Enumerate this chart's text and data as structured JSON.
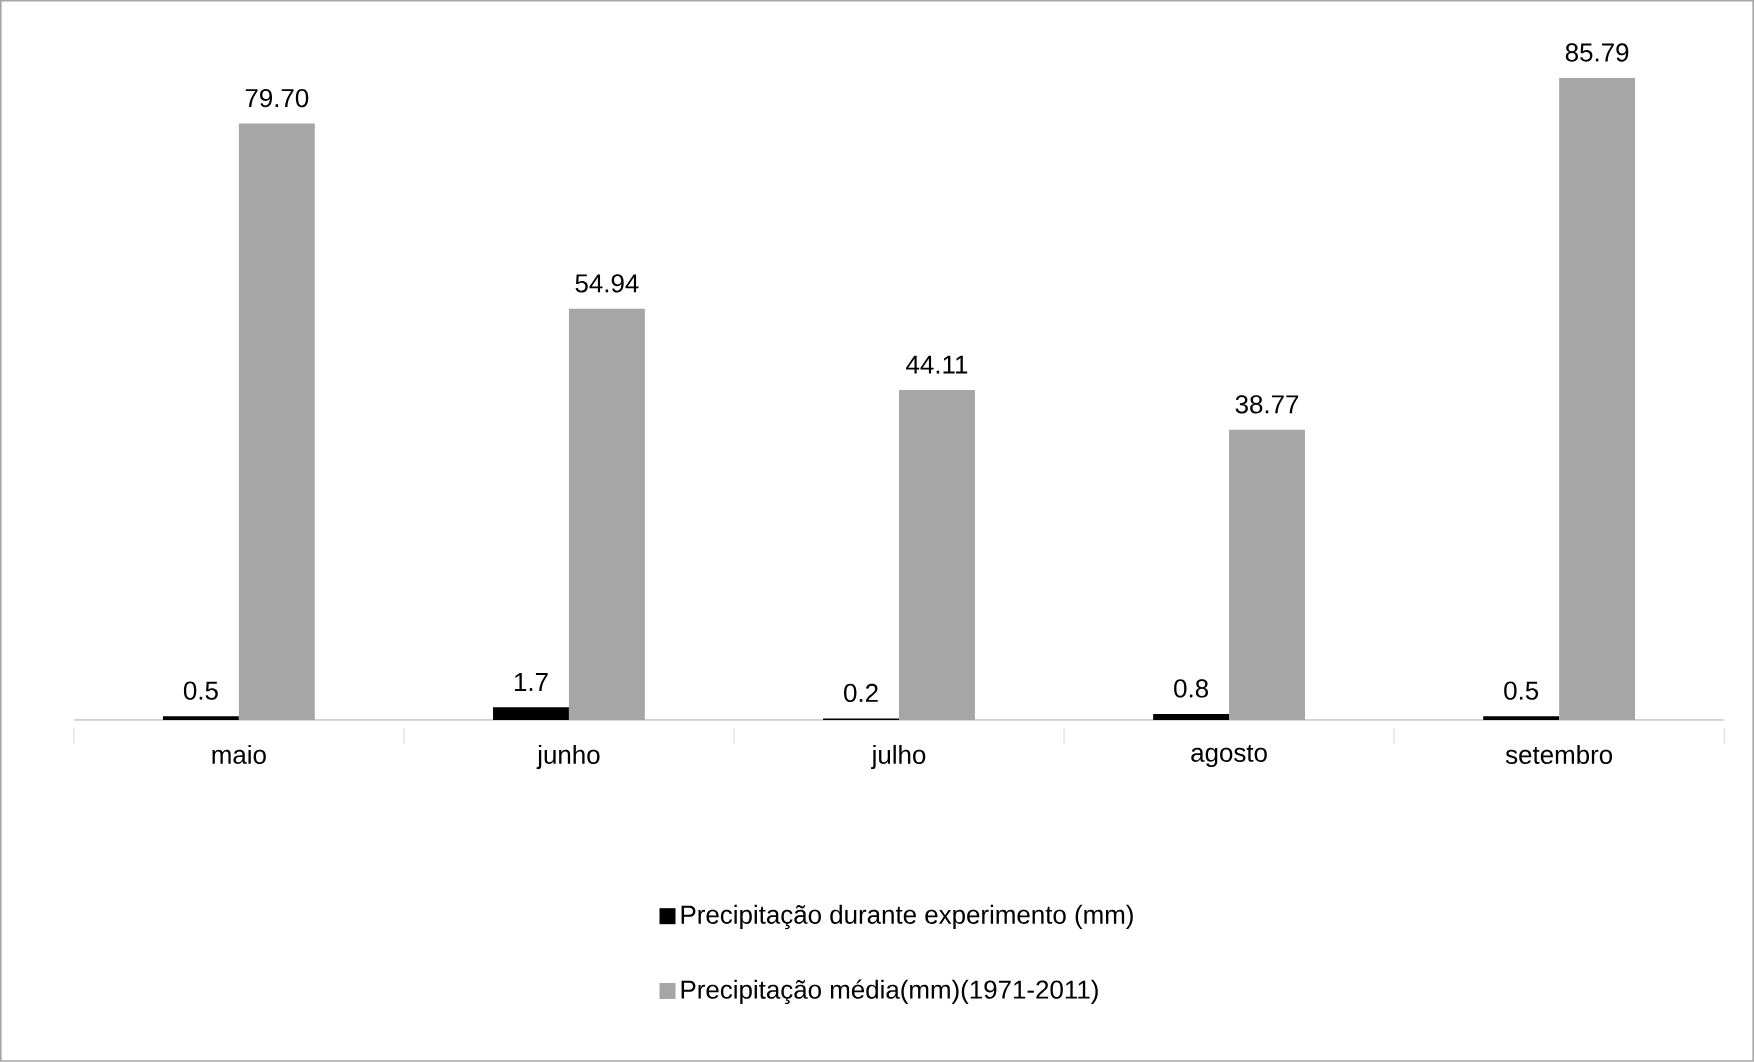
{
  "chart_data": {
    "type": "bar",
    "categories": [
      "maio",
      "junho",
      "julho",
      "agosto",
      "setembro"
    ],
    "series": [
      {
        "name": "Precipitação durante experimento (mm)",
        "color": "#000000",
        "values": [
          0.5,
          1.7,
          0.2,
          0.8,
          0.5
        ],
        "value_labels": [
          "0.5",
          "1.7",
          "0.2",
          "0.8",
          "0.5"
        ]
      },
      {
        "name": "Precipitação média(mm)(1971-2011)",
        "color": "#a6a6a6",
        "values": [
          79.7,
          54.94,
          44.11,
          38.77,
          85.79
        ],
        "value_labels": [
          "79.70",
          "54.94",
          "44.11",
          "38.77",
          "85.79"
        ]
      }
    ],
    "legend": "bottom"
  }
}
